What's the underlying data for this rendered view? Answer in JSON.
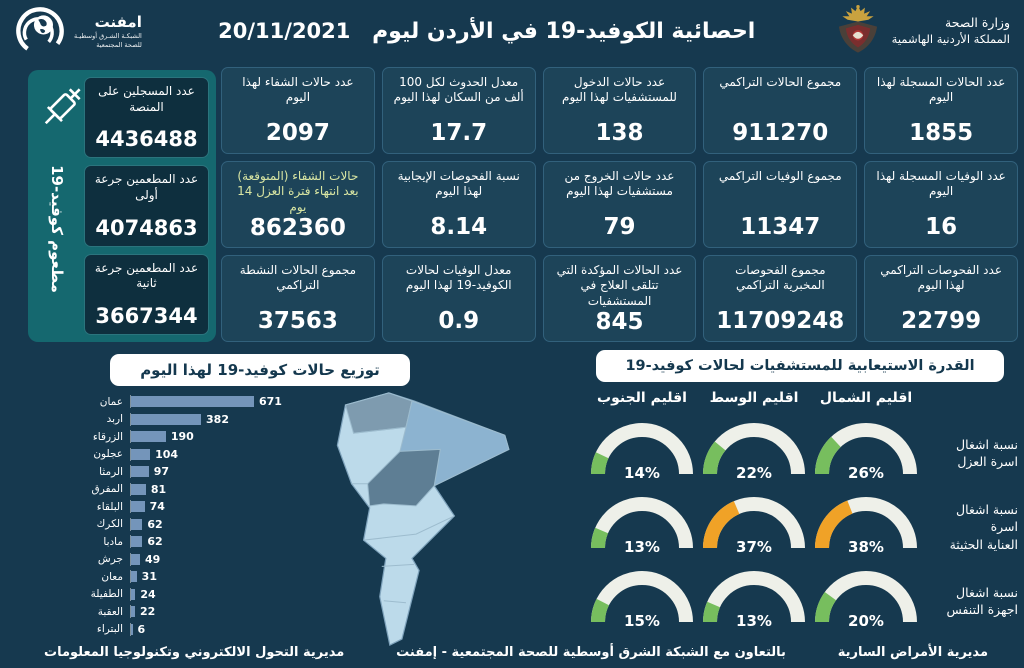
{
  "theme": {
    "background": "#16394F",
    "card_bg": "#1D4459",
    "teal_panel": "#15686F",
    "bar_color": "#7495BA",
    "gauge_green": "#77BE5E",
    "gauge_orange": "#F0A227",
    "gauge_track": "#EEF0E9",
    "map_light": "#BCDAEA",
    "highlight_label": "#D9E6A3"
  },
  "header": {
    "title": "احصائية الكوفيد-19 في الأردن ليوم",
    "date": "20/11/2021",
    "ministry_line1": "وزارة الصحة",
    "ministry_line2": "المملكة الأردنية الهاشمية",
    "logo_name": "امفنت",
    "logo_sub1": "الشبكـة الشـرق أوسطيـة",
    "logo_sub2": "للصحة المجتمعية"
  },
  "vaccine": {
    "side_label": "مطعوم كوفيد-19",
    "boxes": [
      {
        "label": "عدد المسجلين على المنصة",
        "value": "4436488"
      },
      {
        "label": "عدد المطعمين جرعة أولى",
        "value": "4074863"
      },
      {
        "label": "عدد المطعمين جرعة ثانية",
        "value": "3667344"
      }
    ]
  },
  "cards": [
    {
      "label": "عدد الحالات المسجلة لهذا اليوم",
      "value": "1855"
    },
    {
      "label": "مجموع الحالات التراكمي",
      "value": "911270"
    },
    {
      "label": "عدد حالات الدخول للمستشفيات لهذا اليوم",
      "value": "138"
    },
    {
      "label": "معدل الحدوث لكل 100 ألف من السكان لهذا اليوم",
      "value": "17.7"
    },
    {
      "label": "عدد حالات الشفاء لهذا اليوم",
      "value": "2097"
    },
    {
      "label": "عدد الوفيات المسجلة لهذا اليوم",
      "value": "16"
    },
    {
      "label": "مجموع الوفيات التراكمي",
      "value": "11347"
    },
    {
      "label": "عدد حالات الخروج من مستشفيات لهذا اليوم",
      "value": "79"
    },
    {
      "label": "نسبة الفحوصات الإيجابية لهذا اليوم",
      "value": "8.14"
    },
    {
      "label": "حالات الشفاء (المتوقعة) بعد انتهاء فترة العزل 14 يوم",
      "value": "862360"
    },
    {
      "label": "عدد الفحوصات التراكمي لهذا اليوم",
      "value": "22799"
    },
    {
      "label": "مجموع الفحوصات المخبرية التراكمي",
      "value": "11709248"
    },
    {
      "label": "عدد الحالات المؤكدة التي تتلقى العلاج في المستشفيات",
      "value": "845"
    },
    {
      "label": "معدل الوفيات لحالات الكوفيد-19 لهذا اليوم",
      "value": "0.9"
    },
    {
      "label": "مجموع الحالات النشطة التراكمي",
      "value": "37563"
    }
  ],
  "chart_data": [
    {
      "type": "bar",
      "orientation": "horizontal",
      "title": "توزيع حالات كوفيد-19 لهذا اليوم",
      "categories": [
        "عمان",
        "اربد",
        "الزرقاء",
        "عجلون",
        "الرمثا",
        "المفرق",
        "البلقاء",
        "الكرك",
        "مادبا",
        "جرش",
        "معان",
        "الطفيلة",
        "العقبة",
        "البتراء"
      ],
      "values": [
        671,
        382,
        190,
        104,
        97,
        81,
        74,
        62,
        62,
        49,
        31,
        24,
        22,
        6
      ],
      "max_value": 671,
      "bar_color": "#7495BA"
    },
    {
      "type": "gauge",
      "title": "القدرة الاستيعابية للمستشفيات لحالات كوفيد-19",
      "columns": [
        "اقليم الشمال",
        "اقليم الوسط",
        "اقليم الجنوب"
      ],
      "rows": [
        {
          "label": [
            "نسبة اشغال",
            "اسرة العزل"
          ],
          "values": [
            26,
            22,
            14
          ],
          "labels": [
            "26%",
            "22%",
            "14%"
          ],
          "colors": [
            "green",
            "green",
            "green"
          ]
        },
        {
          "label": [
            "نسبة اشغال اسرة",
            "العناية الحثيثة"
          ],
          "values": [
            38,
            37,
            13
          ],
          "labels": [
            "38%",
            "37%",
            "13%"
          ],
          "colors": [
            "orange",
            "orange",
            "green"
          ]
        },
        {
          "label": [
            "نسبة اشغال",
            "اجهزة التنفس"
          ],
          "values": [
            20,
            13,
            15
          ],
          "labels": [
            "20%",
            "13%",
            "15%"
          ],
          "colors": [
            "green",
            "green",
            "green"
          ]
        }
      ]
    }
  ],
  "footer": {
    "right": "مديرية الأمراض السارية",
    "center": "بالتعاون مع الشبكة الشرق أوسطية للصحة المجتمعية - إمفنت",
    "left": "مديرية التحول الالكتروني وتكنولوجيا المعلومات"
  }
}
